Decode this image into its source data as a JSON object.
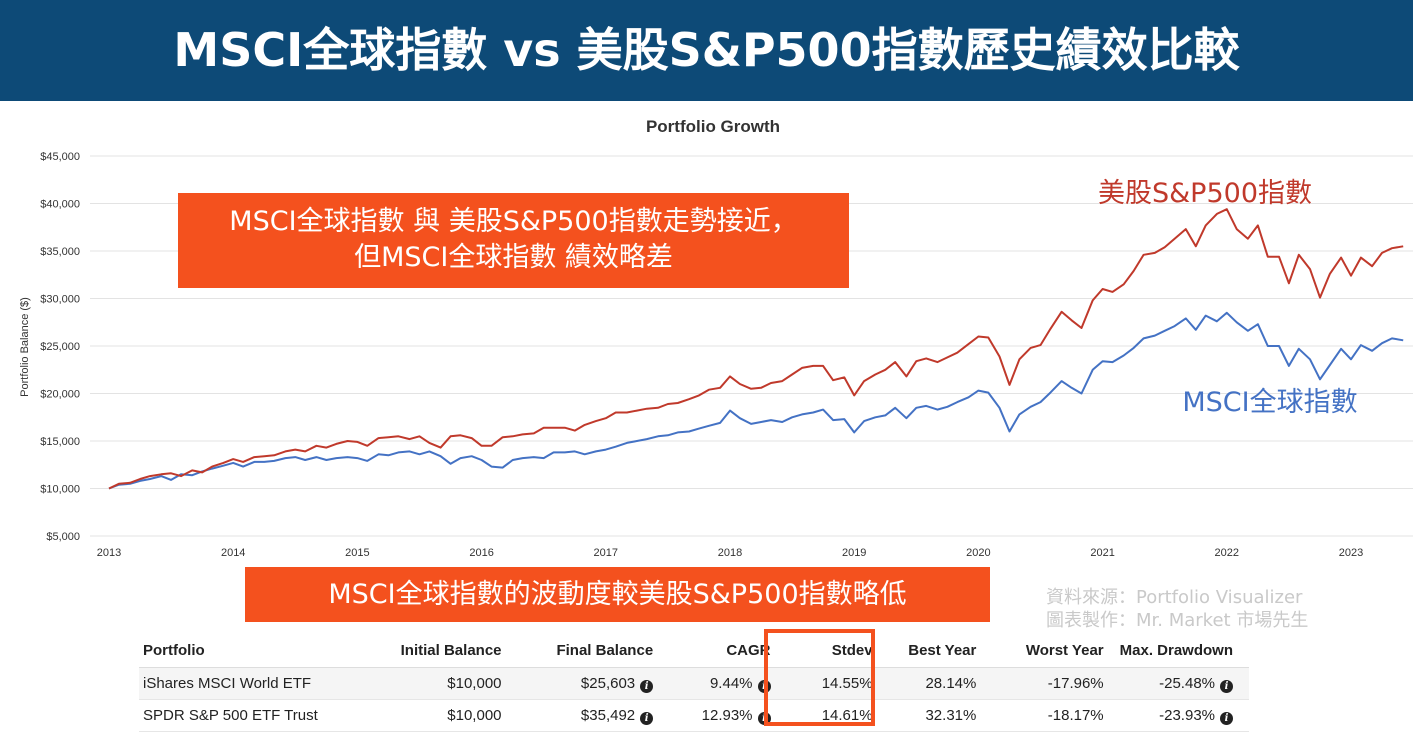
{
  "header": {
    "title": "MSCI全球指數 vs 美股S&P500指數歷史績效比較",
    "background": "#0d4a77"
  },
  "callouts": {
    "top_line1": "MSCI全球指數 與 美股S&P500指數走勢接近，",
    "top_line2": "但MSCI全球指數 績效略差",
    "bottom": "MSCI全球指數的波動度較美股S&P500指數略低",
    "color": "#f4511e"
  },
  "source": {
    "line1": "資料來源：Portfolio Visualizer",
    "line2": "圖表製作：Mr. Market 市場先生"
  },
  "chart_data": {
    "type": "line",
    "title": "Portfolio Growth",
    "ylabel": "Portfolio Balance ($)",
    "xlabel": "",
    "xlim": [
      2013.0,
      2023.5
    ],
    "ylim": [
      5000,
      45000
    ],
    "grid": true,
    "x_ticks": [
      "2013",
      "2014",
      "2015",
      "2016",
      "2017",
      "2018",
      "2019",
      "2020",
      "2021",
      "2022",
      "2023"
    ],
    "y_ticks": [
      "$5,000",
      "$10,000",
      "$15,000",
      "$20,000",
      "$25,000",
      "$30,000",
      "$35,000",
      "$40,000",
      "$45,000"
    ],
    "series": [
      {
        "name": "美股S&P500指數",
        "color": "#c0392b",
        "points": [
          [
            2013.0,
            10000
          ],
          [
            2013.08,
            10500
          ],
          [
            2013.17,
            10600
          ],
          [
            2013.25,
            11000
          ],
          [
            2013.33,
            11300
          ],
          [
            2013.42,
            11500
          ],
          [
            2013.5,
            11600
          ],
          [
            2013.58,
            11300
          ],
          [
            2013.67,
            11900
          ],
          [
            2013.75,
            11700
          ],
          [
            2013.83,
            12300
          ],
          [
            2013.92,
            12700
          ],
          [
            2014.0,
            13100
          ],
          [
            2014.08,
            12800
          ],
          [
            2014.17,
            13300
          ],
          [
            2014.25,
            13400
          ],
          [
            2014.33,
            13500
          ],
          [
            2014.42,
            13900
          ],
          [
            2014.5,
            14100
          ],
          [
            2014.58,
            13900
          ],
          [
            2014.67,
            14500
          ],
          [
            2014.75,
            14300
          ],
          [
            2014.83,
            14700
          ],
          [
            2014.92,
            15000
          ],
          [
            2015.0,
            14900
          ],
          [
            2015.08,
            14500
          ],
          [
            2015.17,
            15300
          ],
          [
            2015.25,
            15400
          ],
          [
            2015.33,
            15500
          ],
          [
            2015.42,
            15200
          ],
          [
            2015.5,
            15500
          ],
          [
            2015.58,
            14800
          ],
          [
            2015.67,
            14300
          ],
          [
            2015.75,
            15500
          ],
          [
            2015.83,
            15600
          ],
          [
            2015.92,
            15300
          ],
          [
            2016.0,
            14500
          ],
          [
            2016.08,
            14500
          ],
          [
            2016.17,
            15400
          ],
          [
            2016.25,
            15500
          ],
          [
            2016.33,
            15700
          ],
          [
            2016.42,
            15800
          ],
          [
            2016.5,
            16400
          ],
          [
            2016.58,
            16400
          ],
          [
            2016.67,
            16400
          ],
          [
            2016.75,
            16100
          ],
          [
            2016.83,
            16700
          ],
          [
            2016.92,
            17100
          ],
          [
            2017.0,
            17400
          ],
          [
            2017.08,
            18000
          ],
          [
            2017.17,
            18000
          ],
          [
            2017.25,
            18200
          ],
          [
            2017.33,
            18400
          ],
          [
            2017.42,
            18500
          ],
          [
            2017.5,
            18900
          ],
          [
            2017.58,
            19000
          ],
          [
            2017.67,
            19400
          ],
          [
            2017.75,
            19800
          ],
          [
            2017.83,
            20400
          ],
          [
            2017.92,
            20600
          ],
          [
            2018.0,
            21800
          ],
          [
            2018.08,
            21000
          ],
          [
            2018.17,
            20500
          ],
          [
            2018.25,
            20600
          ],
          [
            2018.33,
            21100
          ],
          [
            2018.42,
            21300
          ],
          [
            2018.5,
            22000
          ],
          [
            2018.58,
            22700
          ],
          [
            2018.67,
            22900
          ],
          [
            2018.75,
            22900
          ],
          [
            2018.83,
            21400
          ],
          [
            2018.92,
            21700
          ],
          [
            2019.0,
            19800
          ],
          [
            2019.08,
            21300
          ],
          [
            2019.17,
            22000
          ],
          [
            2019.25,
            22500
          ],
          [
            2019.33,
            23300
          ],
          [
            2019.42,
            21800
          ],
          [
            2019.5,
            23400
          ],
          [
            2019.58,
            23700
          ],
          [
            2019.67,
            23300
          ],
          [
            2019.75,
            23800
          ],
          [
            2019.83,
            24300
          ],
          [
            2019.92,
            25200
          ],
          [
            2020.0,
            26000
          ],
          [
            2020.08,
            25900
          ],
          [
            2020.17,
            23900
          ],
          [
            2020.25,
            20900
          ],
          [
            2020.33,
            23600
          ],
          [
            2020.42,
            24800
          ],
          [
            2020.5,
            25100
          ],
          [
            2020.58,
            26800
          ],
          [
            2020.67,
            28600
          ],
          [
            2020.75,
            27700
          ],
          [
            2020.83,
            26900
          ],
          [
            2020.92,
            29800
          ],
          [
            2021.0,
            31000
          ],
          [
            2021.08,
            30700
          ],
          [
            2021.17,
            31500
          ],
          [
            2021.25,
            32900
          ],
          [
            2021.33,
            34600
          ],
          [
            2021.42,
            34800
          ],
          [
            2021.5,
            35400
          ],
          [
            2021.58,
            36300
          ],
          [
            2021.67,
            37300
          ],
          [
            2021.75,
            35500
          ],
          [
            2021.83,
            37700
          ],
          [
            2021.92,
            38900
          ],
          [
            2022.0,
            39400
          ],
          [
            2022.08,
            37300
          ],
          [
            2022.17,
            36300
          ],
          [
            2022.25,
            37700
          ],
          [
            2022.33,
            34400
          ],
          [
            2022.42,
            34400
          ],
          [
            2022.5,
            31600
          ],
          [
            2022.58,
            34600
          ],
          [
            2022.67,
            33100
          ],
          [
            2022.75,
            30100
          ],
          [
            2022.83,
            32600
          ],
          [
            2022.92,
            34300
          ],
          [
            2023.0,
            32400
          ],
          [
            2023.08,
            34300
          ],
          [
            2023.17,
            33400
          ],
          [
            2023.25,
            34800
          ],
          [
            2023.33,
            35300
          ],
          [
            2023.42,
            35492
          ]
        ]
      },
      {
        "name": "MSCI全球指數",
        "color": "#4472c4",
        "points": [
          [
            2013.0,
            10000
          ],
          [
            2013.08,
            10400
          ],
          [
            2013.17,
            10500
          ],
          [
            2013.25,
            10800
          ],
          [
            2013.33,
            11000
          ],
          [
            2013.42,
            11300
          ],
          [
            2013.5,
            10900
          ],
          [
            2013.58,
            11500
          ],
          [
            2013.67,
            11400
          ],
          [
            2013.75,
            11800
          ],
          [
            2013.83,
            12100
          ],
          [
            2013.92,
            12400
          ],
          [
            2014.0,
            12700
          ],
          [
            2014.08,
            12300
          ],
          [
            2014.17,
            12800
          ],
          [
            2014.25,
            12800
          ],
          [
            2014.33,
            12900
          ],
          [
            2014.42,
            13200
          ],
          [
            2014.5,
            13300
          ],
          [
            2014.58,
            13000
          ],
          [
            2014.67,
            13300
          ],
          [
            2014.75,
            13000
          ],
          [
            2014.83,
            13200
          ],
          [
            2014.92,
            13300
          ],
          [
            2015.0,
            13200
          ],
          [
            2015.08,
            12900
          ],
          [
            2015.17,
            13600
          ],
          [
            2015.25,
            13500
          ],
          [
            2015.33,
            13800
          ],
          [
            2015.42,
            13900
          ],
          [
            2015.5,
            13600
          ],
          [
            2015.58,
            13900
          ],
          [
            2015.67,
            13400
          ],
          [
            2015.75,
            12600
          ],
          [
            2015.83,
            13200
          ],
          [
            2015.92,
            13400
          ],
          [
            2016.0,
            13000
          ],
          [
            2016.08,
            12300
          ],
          [
            2016.17,
            12200
          ],
          [
            2016.25,
            13000
          ],
          [
            2016.33,
            13200
          ],
          [
            2016.42,
            13300
          ],
          [
            2016.5,
            13200
          ],
          [
            2016.58,
            13800
          ],
          [
            2016.67,
            13800
          ],
          [
            2016.75,
            13900
          ],
          [
            2016.83,
            13600
          ],
          [
            2016.92,
            13900
          ],
          [
            2017.0,
            14100
          ],
          [
            2017.08,
            14400
          ],
          [
            2017.17,
            14800
          ],
          [
            2017.25,
            15000
          ],
          [
            2017.33,
            15200
          ],
          [
            2017.42,
            15500
          ],
          [
            2017.5,
            15600
          ],
          [
            2017.58,
            15900
          ],
          [
            2017.67,
            16000
          ],
          [
            2017.75,
            16300
          ],
          [
            2017.83,
            16600
          ],
          [
            2017.92,
            16900
          ],
          [
            2018.0,
            18200
          ],
          [
            2018.08,
            17400
          ],
          [
            2018.17,
            16800
          ],
          [
            2018.25,
            17000
          ],
          [
            2018.33,
            17200
          ],
          [
            2018.42,
            17000
          ],
          [
            2018.5,
            17500
          ],
          [
            2018.58,
            17800
          ],
          [
            2018.67,
            18000
          ],
          [
            2018.75,
            18300
          ],
          [
            2018.83,
            17200
          ],
          [
            2018.92,
            17300
          ],
          [
            2019.0,
            15900
          ],
          [
            2019.08,
            17100
          ],
          [
            2019.17,
            17500
          ],
          [
            2019.25,
            17700
          ],
          [
            2019.33,
            18500
          ],
          [
            2019.42,
            17400
          ],
          [
            2019.5,
            18500
          ],
          [
            2019.58,
            18700
          ],
          [
            2019.67,
            18300
          ],
          [
            2019.75,
            18600
          ],
          [
            2019.83,
            19100
          ],
          [
            2019.92,
            19600
          ],
          [
            2020.0,
            20300
          ],
          [
            2020.08,
            20100
          ],
          [
            2020.17,
            18500
          ],
          [
            2020.25,
            16000
          ],
          [
            2020.33,
            17800
          ],
          [
            2020.42,
            18600
          ],
          [
            2020.5,
            19100
          ],
          [
            2020.58,
            20100
          ],
          [
            2020.67,
            21300
          ],
          [
            2020.75,
            20600
          ],
          [
            2020.83,
            20000
          ],
          [
            2020.92,
            22500
          ],
          [
            2021.0,
            23400
          ],
          [
            2021.08,
            23300
          ],
          [
            2021.17,
            24000
          ],
          [
            2021.25,
            24800
          ],
          [
            2021.33,
            25800
          ],
          [
            2021.42,
            26100
          ],
          [
            2021.5,
            26600
          ],
          [
            2021.58,
            27100
          ],
          [
            2021.67,
            27900
          ],
          [
            2021.75,
            26700
          ],
          [
            2021.83,
            28200
          ],
          [
            2021.92,
            27600
          ],
          [
            2022.0,
            28500
          ],
          [
            2022.08,
            27500
          ],
          [
            2022.17,
            26600
          ],
          [
            2022.25,
            27300
          ],
          [
            2022.33,
            25000
          ],
          [
            2022.42,
            25000
          ],
          [
            2022.5,
            22900
          ],
          [
            2022.58,
            24700
          ],
          [
            2022.67,
            23600
          ],
          [
            2022.75,
            21500
          ],
          [
            2022.83,
            23000
          ],
          [
            2022.92,
            24700
          ],
          [
            2023.0,
            23600
          ],
          [
            2023.08,
            25100
          ],
          [
            2023.17,
            24500
          ],
          [
            2023.25,
            25300
          ],
          [
            2023.33,
            25800
          ],
          [
            2023.42,
            25603
          ]
        ]
      }
    ]
  },
  "table": {
    "headers": [
      "Portfolio",
      "Initial Balance",
      "Final Balance",
      "CAGR",
      "Stdev",
      "Best Year",
      "Worst Year",
      "Max. Drawdown"
    ],
    "rows": [
      {
        "portfolio": "iShares MSCI World ETF",
        "initial": "$10,000",
        "final": "$25,603",
        "cagr": "9.44%",
        "stdev": "14.55%",
        "best": "28.14%",
        "worst": "-17.96%",
        "drawdown": "-25.48%"
      },
      {
        "portfolio": "SPDR S&P 500 ETF Trust",
        "initial": "$10,000",
        "final": "$35,492",
        "cagr": "12.93%",
        "stdev": "14.61%",
        "best": "32.31%",
        "worst": "-18.17%",
        "drawdown": "-23.93%"
      }
    ],
    "info_icon": "i",
    "highlight_color": "#f4511e"
  }
}
